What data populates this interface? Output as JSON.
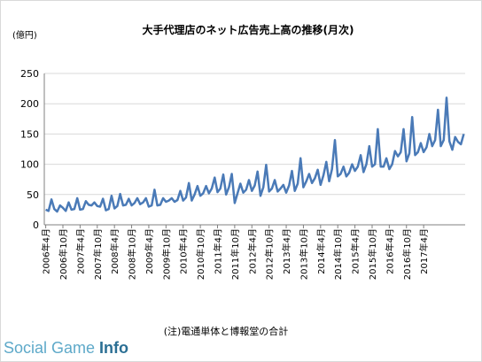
{
  "chart_data": {
    "type": "line",
    "title": "大手代理店のネット広告売上高の推移(月次)",
    "unit_label": "(億円)",
    "xlabel": "",
    "ylabel": "",
    "ylim": [
      0,
      250
    ],
    "yticks": [
      0,
      50,
      100,
      150,
      200,
      250
    ],
    "grid": true,
    "legend": "none",
    "note": "(注)電通単体と博報堂の合計",
    "x_tick_labels": [
      "2006年4月",
      "2006年10月",
      "2007年4月",
      "2007年10月",
      "2008年4月",
      "2008年10月",
      "2009年4月",
      "2009年10月",
      "2010年4月",
      "2010年10月",
      "2011年4月",
      "2011年10月",
      "2012年4月",
      "2012年10月",
      "2013年4月",
      "2013年10月",
      "2014年4月",
      "2014年10月",
      "2015年4月",
      "2015年10月",
      "2016年4月",
      "2016年10月",
      "2017年4月"
    ],
    "color": "#4a7ab7",
    "series": [
      {
        "values": [
          25,
          23,
          42,
          26,
          22,
          32,
          28,
          23,
          37,
          25,
          26,
          44,
          25,
          26,
          39,
          33,
          32,
          37,
          31,
          30,
          43,
          24,
          26,
          48,
          27,
          31,
          51,
          32,
          33,
          43,
          32,
          36,
          44,
          34,
          37,
          44,
          30,
          32,
          58,
          32,
          33,
          44,
          38,
          40,
          44,
          38,
          41,
          56,
          40,
          45,
          69,
          40,
          50,
          64,
          48,
          52,
          64,
          52,
          60,
          78,
          54,
          60,
          83,
          50,
          62,
          84,
          36,
          52,
          68,
          53,
          58,
          74,
          56,
          65,
          88,
          48,
          62,
          99,
          55,
          60,
          74,
          55,
          60,
          66,
          53,
          65,
          89,
          56,
          68,
          110,
          62,
          72,
          84,
          69,
          77,
          91,
          66,
          82,
          104,
          72,
          92,
          140,
          80,
          84,
          96,
          80,
          86,
          100,
          89,
          96,
          115,
          87,
          100,
          130,
          96,
          100,
          158,
          96,
          96,
          110,
          92,
          100,
          122,
          113,
          120,
          158,
          105,
          118,
          178,
          115,
          120,
          135,
          120,
          128,
          150,
          130,
          140,
          190,
          130,
          140,
          210,
          138,
          124,
          145,
          137,
          133,
          150
        ]
      }
    ]
  },
  "watermark": {
    "text_light": "Social Game ",
    "text_strong": "Info"
  }
}
